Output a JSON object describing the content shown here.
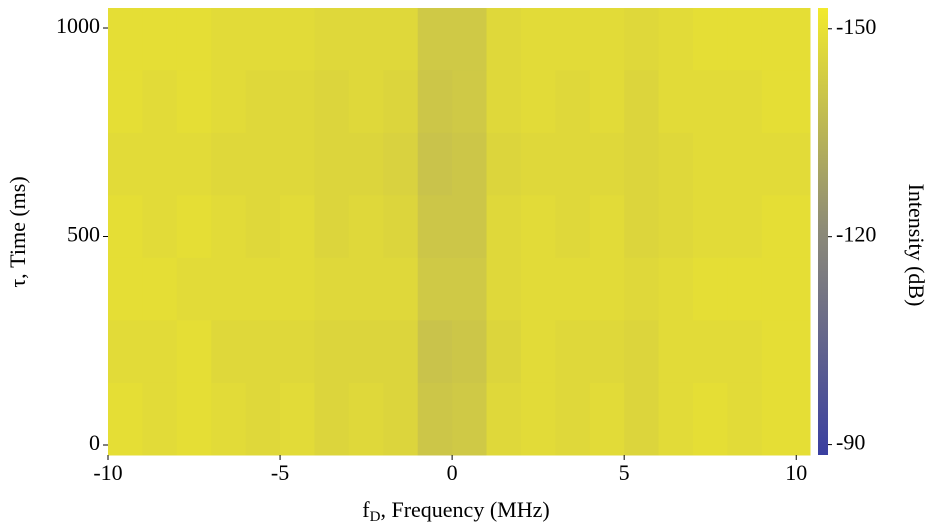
{
  "chart_data": {
    "type": "heatmap",
    "x_label": [
      "f",
      "D",
      ", Frequency (MHz)"
    ],
    "y_label": "τ, Time (ms)",
    "colorbar_label": "Intensity (dB)",
    "xlim": [
      -10,
      10.4
    ],
    "xticks": [
      -10,
      -5,
      0,
      5,
      10
    ],
    "ylim": [
      -24,
      1048
    ],
    "yticks": [
      0,
      500,
      1000
    ],
    "clim": [
      -153,
      -88.5
    ],
    "cticks": [
      -150,
      -120,
      -90
    ],
    "colormap": [
      "#f2ea2c",
      "#8c8a78",
      "#3a3fa0"
    ],
    "xbins": [
      -10,
      -9,
      -8,
      -7,
      -6,
      -5,
      -4,
      -3,
      -2,
      -1,
      0,
      1,
      2,
      3,
      4,
      5,
      6,
      7,
      8,
      9,
      10.4
    ],
    "ybins": [
      -24,
      150,
      300,
      450,
      600,
      750,
      900,
      1048
    ],
    "z": [
      [
        -149,
        -148,
        -149,
        -148,
        -147,
        -148,
        -146,
        -147,
        -146,
        -141,
        -142,
        -147,
        -148,
        -147,
        -148,
        -146,
        -148,
        -149,
        -148,
        -149
      ],
      [
        -148,
        -148,
        -149,
        -147,
        -147,
        -147,
        -146,
        -146,
        -146,
        -140,
        -141,
        -146,
        -148,
        -147,
        -147,
        -146,
        -148,
        -148,
        -148,
        -149
      ],
      [
        -149,
        -149,
        -148,
        -148,
        -148,
        -148,
        -147,
        -147,
        -147,
        -142,
        -142,
        -147,
        -148,
        -148,
        -148,
        -147,
        -148,
        -149,
        -149,
        -149
      ],
      [
        -149,
        -148,
        -149,
        -148,
        -147,
        -148,
        -146,
        -147,
        -146,
        -141,
        -141,
        -147,
        -148,
        -147,
        -148,
        -146,
        -147,
        -148,
        -148,
        -149
      ],
      [
        -148,
        -148,
        -148,
        -147,
        -147,
        -147,
        -146,
        -146,
        -145,
        -140,
        -141,
        -146,
        -147,
        -147,
        -147,
        -146,
        -147,
        -148,
        -148,
        -148
      ],
      [
        -149,
        -148,
        -149,
        -148,
        -147,
        -147,
        -146,
        -147,
        -146,
        -141,
        -142,
        -147,
        -148,
        -147,
        -148,
        -146,
        -148,
        -148,
        -148,
        -149
      ],
      [
        -149,
        -149,
        -149,
        -148,
        -148,
        -148,
        -147,
        -147,
        -147,
        -142,
        -142,
        -147,
        -148,
        -148,
        -148,
        -147,
        -148,
        -149,
        -149,
        -149
      ]
    ]
  }
}
